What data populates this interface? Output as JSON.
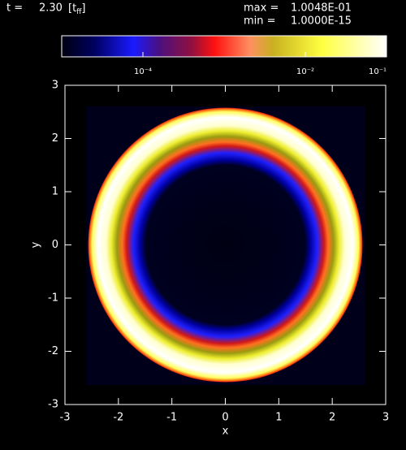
{
  "header": {
    "time_label": "t =",
    "time": "2.30",
    "time_unit_open": "[",
    "time_unit": "t",
    "time_unit_subscript": "ff",
    "time_unit_close": "]",
    "max_label": "max =",
    "max": "1.0048E-01",
    "min_label": "min =",
    "min": "1.0000E-15"
  },
  "chart_data": {
    "type": "image",
    "colorbar": {
      "scale": "log",
      "clim": [
        1e-05,
        0.1
      ],
      "ticks": [
        {
          "value": 0.0001,
          "label": "10⁻⁴"
        },
        {
          "value": 0.01,
          "label": "10⁻²"
        },
        {
          "value": 0.1,
          "label": "10⁻¹"
        }
      ]
    },
    "xlabel": "x",
    "ylabel": "y",
    "xlim": [
      -3,
      3
    ],
    "ylim": [
      -3,
      3
    ],
    "xticks": [
      -3,
      -2,
      -1,
      0,
      1,
      2,
      3
    ],
    "yticks": [
      -3,
      -2,
      -1,
      0,
      1,
      2,
      3
    ]
  }
}
